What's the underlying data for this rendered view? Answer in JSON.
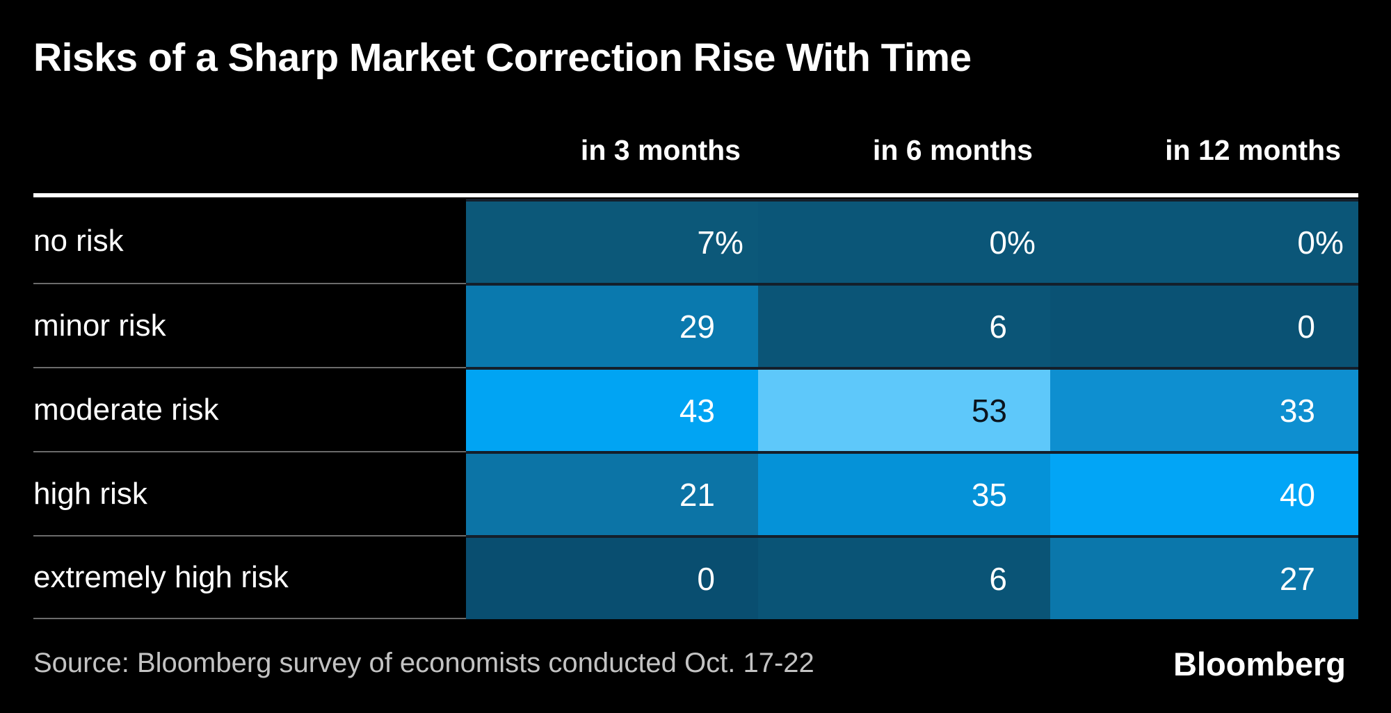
{
  "title": "Risks of a Sharp Market Correction Rise With Time",
  "source": "Source: Bloomberg survey of economists conducted Oct. 17-22",
  "brand": "Bloomberg",
  "colors": {
    "background": "#000000",
    "top_rule": "#ffffff",
    "row_separator_label_area": "#6b6b6b",
    "row_separator_cells_area": "#141f2b",
    "title_text": "#ffffff",
    "header_text": "#ffffff",
    "row_label_text": "#ffffff",
    "source_text": "#c3c3c3",
    "heat_scale_low": "#094e70",
    "heat_scale_high": "#5ec8fa"
  },
  "chart_data": {
    "type": "heatmap",
    "title": "Risks of a Sharp Market Correction Rise With Time",
    "columns": [
      "in 3 months",
      "in 6 months",
      "in 12 months"
    ],
    "rows": [
      "no risk",
      "minor risk",
      "moderate risk",
      "high risk",
      "extremely high risk"
    ],
    "values_pct": [
      [
        7,
        0,
        0
      ],
      [
        29,
        6,
        0
      ],
      [
        43,
        53,
        33
      ],
      [
        21,
        35,
        40
      ],
      [
        0,
        6,
        27
      ]
    ],
    "cells": [
      [
        {
          "label": "7%",
          "color": "#0c5879",
          "text_color": "#ffffff"
        },
        {
          "label": "0%",
          "color": "#0b5678",
          "text_color": "#ffffff"
        },
        {
          "label": "0%",
          "color": "#0b5678",
          "text_color": "#ffffff"
        }
      ],
      [
        {
          "label": "29",
          "color": "#0a79ae",
          "text_color": "#ffffff"
        },
        {
          "label": "6",
          "color": "#0b5577",
          "text_color": "#ffffff"
        },
        {
          "label": "0",
          "color": "#0a5274",
          "text_color": "#ffffff"
        }
      ],
      [
        {
          "label": "43",
          "color": "#01a4f3",
          "text_color": "#ffffff"
        },
        {
          "label": "53",
          "color": "#5ec8fa",
          "text_color": "#0b141d"
        },
        {
          "label": "33",
          "color": "#0e8fd0",
          "text_color": "#ffffff"
        }
      ],
      [
        {
          "label": "21",
          "color": "#0c74a6",
          "text_color": "#ffffff"
        },
        {
          "label": "35",
          "color": "#0592d8",
          "text_color": "#ffffff"
        },
        {
          "label": "40",
          "color": "#02a5f6",
          "text_color": "#ffffff"
        }
      ],
      [
        {
          "label": "0",
          "color": "#094e70",
          "text_color": "#ffffff"
        },
        {
          "label": "6",
          "color": "#0a5476",
          "text_color": "#ffffff"
        },
        {
          "label": "27",
          "color": "#0b77ab",
          "text_color": "#ffffff"
        }
      ]
    ],
    "legend_position": "none",
    "grid": false,
    "note": "Cell shade encodes the percentage value: darker teal = lower, brighter light blue = higher"
  }
}
